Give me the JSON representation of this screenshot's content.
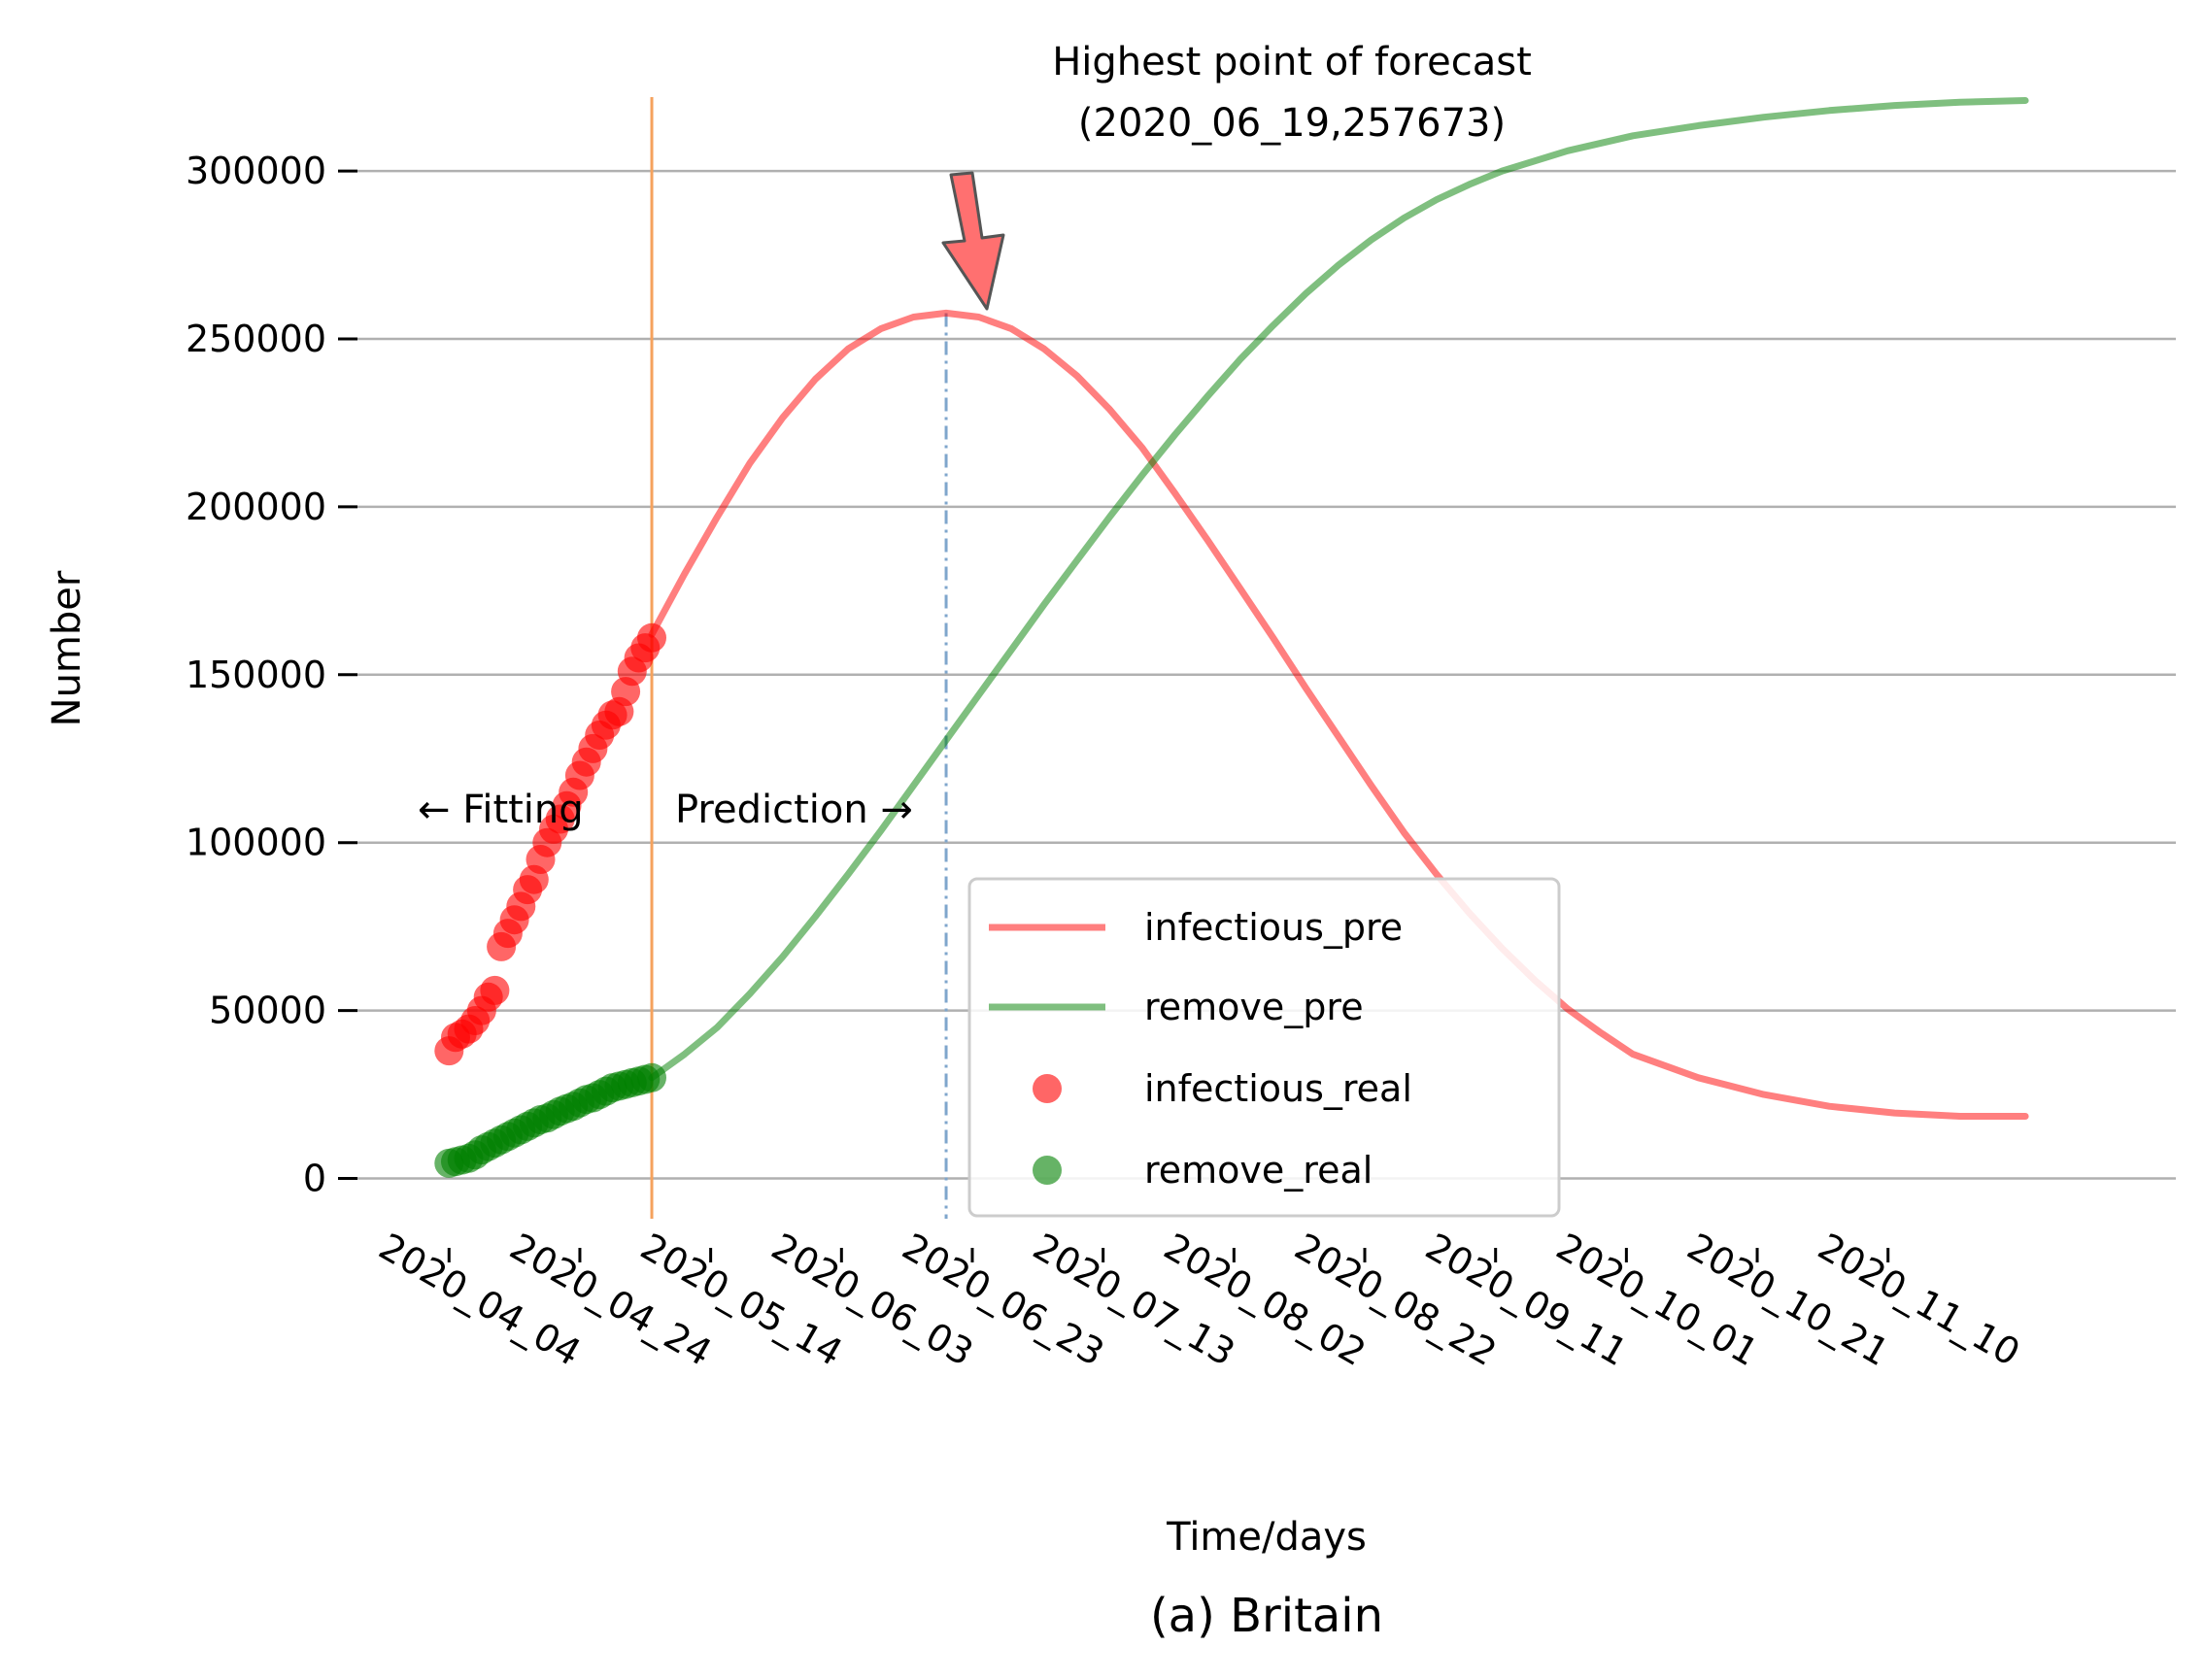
{
  "chart_data": {
    "type": "line",
    "caption": "(a) Britain",
    "xlabel": "Time/days",
    "ylabel": "Number",
    "x_tick_labels": [
      "2020_04_04",
      "2020_04_24",
      "2020_05_14",
      "2020_06_03",
      "2020_06_23",
      "2020_07_13",
      "2020_08_02",
      "2020_08_22",
      "2020_09_11",
      "2020_10_01",
      "2020_10_21",
      "2020_11_10"
    ],
    "y_ticks": [
      0,
      50000,
      100000,
      150000,
      200000,
      250000,
      300000
    ],
    "x_range": [
      "2020-03-21",
      "2020-12-24"
    ],
    "y_range": [
      -12000,
      322000
    ],
    "grid": "horizontal",
    "legend_position": "lower-center",
    "fit_end_date": "2020-05-05",
    "peak": {
      "date": "2020-06-19",
      "value": 257673
    },
    "annotations": {
      "peak_line1": "Highest point of forecast",
      "peak_line2": "(2020_06_19,257673)",
      "fitting": "← Fitting",
      "prediction": "Prediction →"
    },
    "colors": {
      "infectious": "#ff0000",
      "remove": "#008000",
      "fit_divider": "#f5a25d",
      "peak_line": "#7fa6cc",
      "grid": "#b0b0b0",
      "arrow_fill": "#ff7070",
      "arrow_edge": "#555555"
    },
    "series": [
      {
        "name": "infectious_pre",
        "kind": "line",
        "color": "#ff0000",
        "points": [
          [
            "2020-05-05",
            162000
          ],
          [
            "2020-05-10",
            180000
          ],
          [
            "2020-05-15",
            197000
          ],
          [
            "2020-05-20",
            213000
          ],
          [
            "2020-05-25",
            226500
          ],
          [
            "2020-05-30",
            238000
          ],
          [
            "2020-06-04",
            247000
          ],
          [
            "2020-06-09",
            253000
          ],
          [
            "2020-06-14",
            256500
          ],
          [
            "2020-06-19",
            257673
          ],
          [
            "2020-06-24",
            256500
          ],
          [
            "2020-06-29",
            253000
          ],
          [
            "2020-07-04",
            247000
          ],
          [
            "2020-07-09",
            239000
          ],
          [
            "2020-07-14",
            229000
          ],
          [
            "2020-07-19",
            217500
          ],
          [
            "2020-07-24",
            204000
          ],
          [
            "2020-07-29",
            190000
          ],
          [
            "2020-08-03",
            175500
          ],
          [
            "2020-08-08",
            161000
          ],
          [
            "2020-08-13",
            146000
          ],
          [
            "2020-08-18",
            131500
          ],
          [
            "2020-08-23",
            117000
          ],
          [
            "2020-08-28",
            103000
          ],
          [
            "2020-09-02",
            90500
          ],
          [
            "2020-09-07",
            79000
          ],
          [
            "2020-09-12",
            68500
          ],
          [
            "2020-09-17",
            59000
          ],
          [
            "2020-09-22",
            50500
          ],
          [
            "2020-09-27",
            43500
          ],
          [
            "2020-10-02",
            37000
          ],
          [
            "2020-10-12",
            30000
          ],
          [
            "2020-10-22",
            25000
          ],
          [
            "2020-11-01",
            21500
          ],
          [
            "2020-11-11",
            19500
          ],
          [
            "2020-11-21",
            18500
          ],
          [
            "2020-12-01",
            18500
          ]
        ]
      },
      {
        "name": "remove_pre",
        "kind": "line",
        "color": "#008000",
        "points": [
          [
            "2020-05-05",
            30000
          ],
          [
            "2020-05-10",
            37000
          ],
          [
            "2020-05-15",
            45000
          ],
          [
            "2020-05-20",
            55000
          ],
          [
            "2020-05-25",
            66000
          ],
          [
            "2020-05-30",
            78000
          ],
          [
            "2020-06-04",
            90500
          ],
          [
            "2020-06-09",
            103500
          ],
          [
            "2020-06-14",
            117000
          ],
          [
            "2020-06-19",
            130500
          ],
          [
            "2020-06-24",
            144000
          ],
          [
            "2020-06-29",
            157500
          ],
          [
            "2020-07-04",
            171000
          ],
          [
            "2020-07-09",
            184000
          ],
          [
            "2020-07-14",
            197000
          ],
          [
            "2020-07-19",
            209500
          ],
          [
            "2020-07-24",
            221500
          ],
          [
            "2020-07-29",
            233000
          ],
          [
            "2020-08-03",
            244000
          ],
          [
            "2020-08-08",
            254000
          ],
          [
            "2020-08-13",
            263500
          ],
          [
            "2020-08-18",
            272000
          ],
          [
            "2020-08-23",
            279500
          ],
          [
            "2020-08-28",
            286000
          ],
          [
            "2020-09-02",
            291500
          ],
          [
            "2020-09-07",
            296000
          ],
          [
            "2020-09-12",
            300000
          ],
          [
            "2020-09-22",
            306000
          ],
          [
            "2020-10-02",
            310500
          ],
          [
            "2020-10-12",
            313500
          ],
          [
            "2020-10-22",
            316000
          ],
          [
            "2020-11-01",
            318000
          ],
          [
            "2020-11-11",
            319500
          ],
          [
            "2020-11-21",
            320500
          ],
          [
            "2020-12-01",
            321000
          ]
        ]
      },
      {
        "name": "infectious_real",
        "kind": "scatter",
        "color": "#ff0000",
        "points": [
          [
            "2020-04-04",
            38000
          ],
          [
            "2020-04-05",
            42000
          ],
          [
            "2020-04-06",
            43000
          ],
          [
            "2020-04-07",
            44500
          ],
          [
            "2020-04-08",
            47000
          ],
          [
            "2020-04-09",
            50000
          ],
          [
            "2020-04-10",
            54000
          ],
          [
            "2020-04-11",
            56000
          ],
          [
            "2020-04-12",
            69000
          ],
          [
            "2020-04-13",
            73000
          ],
          [
            "2020-04-14",
            77000
          ],
          [
            "2020-04-15",
            81000
          ],
          [
            "2020-04-16",
            86000
          ],
          [
            "2020-04-17",
            89000
          ],
          [
            "2020-04-18",
            95000
          ],
          [
            "2020-04-19",
            100000
          ],
          [
            "2020-04-20",
            104000
          ],
          [
            "2020-04-21",
            107000
          ],
          [
            "2020-04-22",
            111000
          ],
          [
            "2020-04-23",
            115000
          ],
          [
            "2020-04-24",
            120000
          ],
          [
            "2020-04-25",
            124000
          ],
          [
            "2020-04-26",
            128000
          ],
          [
            "2020-04-27",
            132000
          ],
          [
            "2020-04-28",
            135000
          ],
          [
            "2020-04-29",
            138000
          ],
          [
            "2020-04-30",
            139000
          ],
          [
            "2020-05-01",
            145000
          ],
          [
            "2020-05-02",
            151000
          ],
          [
            "2020-05-03",
            155000
          ],
          [
            "2020-05-04",
            158000
          ],
          [
            "2020-05-05",
            161000
          ]
        ]
      },
      {
        "name": "remove_real",
        "kind": "scatter",
        "color": "#008000",
        "points": [
          [
            "2020-04-04",
            4500
          ],
          [
            "2020-04-05",
            5000
          ],
          [
            "2020-04-06",
            5500
          ],
          [
            "2020-04-07",
            6000
          ],
          [
            "2020-04-08",
            7000
          ],
          [
            "2020-04-09",
            8500
          ],
          [
            "2020-04-10",
            9500
          ],
          [
            "2020-04-11",
            10500
          ],
          [
            "2020-04-12",
            11500
          ],
          [
            "2020-04-13",
            12500
          ],
          [
            "2020-04-14",
            13500
          ],
          [
            "2020-04-15",
            14500
          ],
          [
            "2020-04-16",
            15500
          ],
          [
            "2020-04-17",
            16500
          ],
          [
            "2020-04-18",
            17500
          ],
          [
            "2020-04-19",
            18000
          ],
          [
            "2020-04-20",
            19000
          ],
          [
            "2020-04-21",
            20000
          ],
          [
            "2020-04-22",
            20800
          ],
          [
            "2020-04-23",
            21500
          ],
          [
            "2020-04-24",
            22500
          ],
          [
            "2020-04-25",
            23500
          ],
          [
            "2020-04-26",
            24000
          ],
          [
            "2020-04-27",
            25000
          ],
          [
            "2020-04-28",
            26000
          ],
          [
            "2020-04-29",
            27000
          ],
          [
            "2020-04-30",
            27500
          ],
          [
            "2020-05-01",
            28000
          ],
          [
            "2020-05-02",
            28500
          ],
          [
            "2020-05-03",
            29000
          ],
          [
            "2020-05-04",
            29500
          ],
          [
            "2020-05-05",
            30000
          ]
        ]
      }
    ]
  }
}
